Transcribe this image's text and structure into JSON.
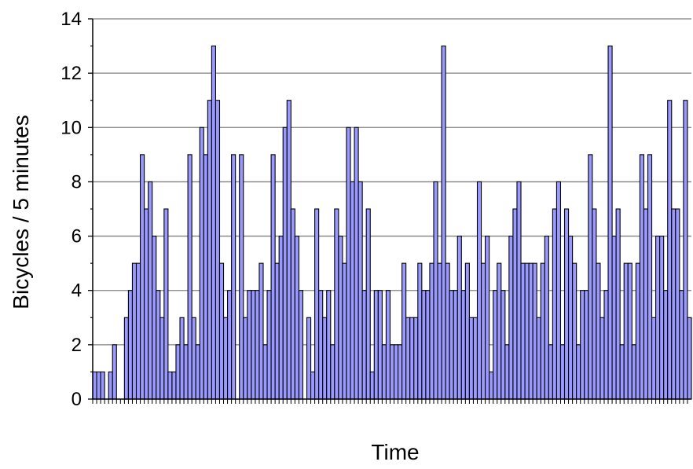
{
  "chart_data": {
    "type": "bar",
    "title": "",
    "xlabel": "Time",
    "ylabel": "Bicycles / 5 minutes",
    "ylim": [
      0,
      14
    ],
    "yticks": [
      0,
      2,
      4,
      6,
      8,
      10,
      12,
      14
    ],
    "grid": "horizontal",
    "legend": "none",
    "colors": {
      "bar_fill": "#9999ff",
      "bar_stroke": "#000000",
      "grid": "#808080",
      "axis": "#000000"
    },
    "values": [
      1,
      1,
      1,
      0,
      1,
      2,
      0,
      0,
      3,
      4,
      5,
      5,
      9,
      7,
      8,
      6,
      4,
      3,
      7,
      1,
      1,
      2,
      3,
      2,
      9,
      3,
      2,
      10,
      9,
      11,
      13,
      11,
      5,
      3,
      4,
      9,
      0,
      9,
      3,
      4,
      4,
      4,
      5,
      2,
      4,
      9,
      5,
      6,
      10,
      11,
      7,
      6,
      4,
      0,
      3,
      1,
      7,
      4,
      3,
      4,
      2,
      7,
      6,
      5,
      10,
      8,
      10,
      8,
      4,
      7,
      1,
      4,
      4,
      2,
      4,
      2,
      2,
      2,
      5,
      3,
      3,
      3,
      5,
      4,
      4,
      5,
      8,
      5,
      13,
      5,
      4,
      4,
      6,
      4,
      5,
      3,
      3,
      8,
      5,
      6,
      1,
      4,
      5,
      4,
      2,
      6,
      7,
      8,
      5,
      5,
      5,
      5,
      3,
      5,
      6,
      2,
      7,
      8,
      2,
      7,
      6,
      5,
      2,
      4,
      4,
      9,
      7,
      5,
      3,
      4,
      13,
      6,
      7,
      2,
      5,
      5,
      2,
      5,
      9,
      7,
      9,
      3,
      6,
      6,
      4,
      11,
      7,
      7,
      4,
      11,
      3
    ]
  }
}
